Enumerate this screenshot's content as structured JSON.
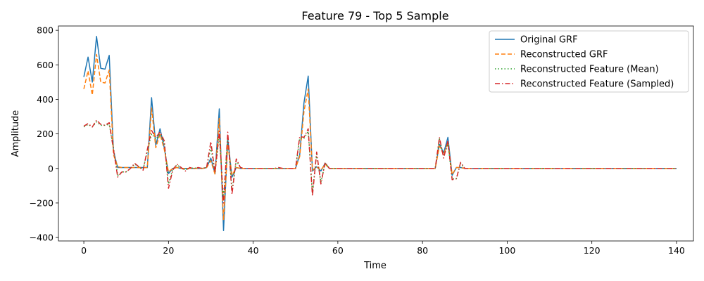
{
  "chart_data": {
    "type": "line",
    "title": "Feature 79 - Top 5 Sample",
    "xlabel": "Time",
    "ylabel": "Amplitude",
    "xlim": [
      -6,
      144
    ],
    "ylim": [
      -420,
      825
    ],
    "xticks": [
      0,
      20,
      40,
      60,
      80,
      100,
      120,
      140
    ],
    "yticks": [
      -400,
      -200,
      0,
      200,
      400,
      600,
      800
    ],
    "grid": false,
    "legend_position": "top-right",
    "x": [
      0,
      1,
      2,
      3,
      4,
      5,
      6,
      7,
      8,
      9,
      10,
      11,
      12,
      13,
      14,
      15,
      16,
      17,
      18,
      19,
      20,
      21,
      22,
      23,
      24,
      25,
      26,
      27,
      28,
      29,
      30,
      31,
      32,
      33,
      34,
      35,
      36,
      37,
      38,
      39,
      40,
      41,
      42,
      43,
      44,
      45,
      46,
      47,
      48,
      49,
      50,
      51,
      52,
      53,
      54,
      55,
      56,
      57,
      58,
      59,
      60,
      61,
      62,
      63,
      64,
      65,
      66,
      67,
      68,
      69,
      70,
      71,
      72,
      73,
      74,
      75,
      76,
      77,
      78,
      79,
      80,
      81,
      82,
      83,
      84,
      85,
      86,
      87,
      88,
      89,
      90,
      91,
      92,
      93,
      94,
      95,
      96,
      97,
      98,
      99,
      100,
      101,
      102,
      103,
      104,
      105,
      106,
      107,
      108,
      109,
      110,
      111,
      112,
      113,
      114,
      115,
      116,
      117,
      118,
      119,
      120,
      121,
      122,
      123,
      124,
      125,
      126,
      127,
      128,
      129,
      130,
      131,
      132,
      133,
      134,
      135,
      136,
      137,
      138,
      139,
      140
    ],
    "series": [
      {
        "name": "Original GRF",
        "color": "#1f77b4",
        "dash": "solid",
        "values": [
          530,
          645,
          500,
          765,
          580,
          575,
          655,
          100,
          5,
          5,
          5,
          5,
          5,
          5,
          5,
          5,
          410,
          135,
          230,
          120,
          -30,
          0,
          5,
          0,
          0,
          0,
          0,
          0,
          0,
          5,
          60,
          -30,
          345,
          -360,
          170,
          -50,
          5,
          0,
          0,
          0,
          0,
          0,
          0,
          0,
          0,
          0,
          0,
          0,
          0,
          0,
          0,
          80,
          380,
          535,
          -15,
          10,
          -15,
          30,
          0,
          0,
          0,
          0,
          0,
          0,
          0,
          0,
          0,
          0,
          0,
          0,
          0,
          0,
          0,
          0,
          0,
          0,
          0,
          0,
          0,
          0,
          0,
          0,
          0,
          0,
          140,
          90,
          180,
          -40,
          5,
          5,
          0,
          0,
          0,
          0,
          0,
          0,
          0,
          0,
          0,
          0,
          0,
          0,
          0,
          0,
          0,
          0,
          0,
          0,
          0,
          0,
          0,
          0,
          0,
          0,
          0,
          0,
          0,
          0,
          0,
          0,
          0,
          0,
          0,
          0,
          0,
          0,
          0,
          0,
          0,
          0,
          0,
          0,
          0,
          0,
          0,
          0,
          0,
          0,
          0,
          0,
          0
        ]
      },
      {
        "name": "Reconstructed GRF",
        "color": "#ff7f0e",
        "dash": "6,3",
        "values": [
          460,
          565,
          425,
          660,
          500,
          495,
          570,
          80,
          10,
          5,
          5,
          5,
          5,
          5,
          5,
          5,
          350,
          120,
          200,
          110,
          -20,
          0,
          5,
          0,
          0,
          0,
          0,
          0,
          0,
          5,
          45,
          -35,
          290,
          -300,
          140,
          -40,
          5,
          0,
          0,
          0,
          0,
          0,
          0,
          0,
          0,
          0,
          0,
          0,
          0,
          0,
          0,
          70,
          330,
          460,
          -10,
          10,
          -10,
          25,
          0,
          0,
          0,
          0,
          0,
          0,
          0,
          0,
          0,
          0,
          0,
          0,
          0,
          0,
          0,
          0,
          0,
          0,
          0,
          0,
          0,
          0,
          0,
          0,
          0,
          0,
          130,
          80,
          150,
          -35,
          5,
          5,
          0,
          0,
          0,
          0,
          0,
          0,
          0,
          0,
          0,
          0,
          0,
          0,
          0,
          0,
          0,
          0,
          0,
          0,
          0,
          0,
          0,
          0,
          0,
          0,
          0,
          0,
          0,
          0,
          0,
          0,
          0,
          0,
          0,
          0,
          0,
          0,
          0,
          0,
          0,
          0,
          0,
          0,
          0,
          0,
          0,
          0,
          0,
          0,
          0,
          0,
          0
        ]
      },
      {
        "name": "Reconstructed Feature (Mean)",
        "color": "#2ca02c",
        "dash": "1.5,3",
        "values": [
          240,
          255,
          240,
          270,
          250,
          250,
          255,
          120,
          -40,
          -20,
          -20,
          0,
          25,
          10,
          -5,
          100,
          200,
          170,
          200,
          150,
          -90,
          -5,
          20,
          5,
          -10,
          5,
          0,
          5,
          0,
          5,
          120,
          -20,
          190,
          -180,
          190,
          -130,
          45,
          5,
          0,
          0,
          0,
          0,
          0,
          0,
          0,
          0,
          0,
          0,
          0,
          0,
          0,
          175,
          175,
          215,
          -140,
          80,
          -80,
          30,
          0,
          0,
          0,
          0,
          0,
          0,
          0,
          0,
          0,
          0,
          0,
          0,
          0,
          0,
          0,
          0,
          0,
          0,
          0,
          0,
          0,
          0,
          0,
          0,
          0,
          0,
          170,
          70,
          140,
          -60,
          -60,
          30,
          0,
          0,
          0,
          0,
          0,
          0,
          0,
          0,
          0,
          0,
          0,
          0,
          0,
          0,
          0,
          0,
          0,
          0,
          0,
          0,
          0,
          0,
          0,
          0,
          0,
          0,
          0,
          0,
          0,
          0,
          0,
          0,
          0,
          0,
          0,
          0,
          0,
          0,
          0,
          0,
          0,
          0,
          0,
          0,
          0,
          0,
          0,
          0,
          0,
          0,
          0
        ]
      },
      {
        "name": "Reconstructed Feature (Sampled)",
        "color": "#d62728",
        "dash": "7,3,1.5,3",
        "values": [
          245,
          260,
          240,
          280,
          255,
          250,
          265,
          110,
          -50,
          -20,
          -20,
          0,
          30,
          10,
          -10,
          110,
          220,
          180,
          210,
          160,
          -115,
          -10,
          25,
          5,
          -15,
          5,
          0,
          5,
          0,
          5,
          155,
          -25,
          215,
          -200,
          210,
          -150,
          55,
          5,
          0,
          0,
          0,
          0,
          0,
          0,
          0,
          0,
          5,
          0,
          0,
          0,
          0,
          185,
          180,
          230,
          -160,
          95,
          -90,
          35,
          0,
          0,
          0,
          0,
          0,
          0,
          0,
          0,
          0,
          0,
          0,
          0,
          0,
          0,
          0,
          0,
          0,
          0,
          0,
          0,
          0,
          0,
          0,
          0,
          0,
          0,
          180,
          60,
          160,
          -65,
          -60,
          35,
          0,
          0,
          0,
          0,
          0,
          0,
          0,
          0,
          0,
          0,
          0,
          0,
          0,
          0,
          0,
          0,
          0,
          0,
          0,
          0,
          0,
          0,
          0,
          0,
          0,
          0,
          0,
          0,
          0,
          0,
          0,
          0,
          0,
          0,
          0,
          0,
          0,
          0,
          0,
          0,
          0,
          0,
          0,
          0,
          0,
          0,
          0,
          0,
          0,
          0,
          0
        ]
      }
    ]
  }
}
